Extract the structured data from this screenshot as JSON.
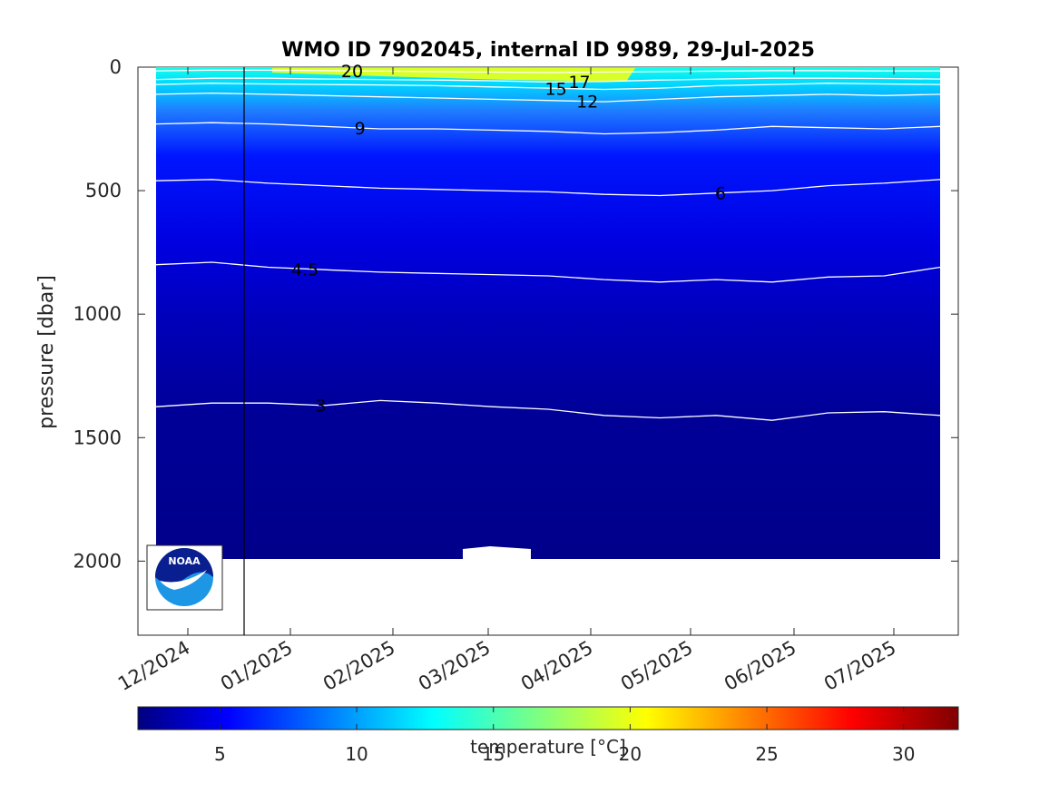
{
  "chart_data": {
    "type": "heatmap",
    "title": "WMO ID 7902045, internal ID 9989, 29-Jul-2025",
    "ylabel": "pressure [dbar]",
    "ylim": [
      2300,
      0
    ],
    "yticks": [
      0,
      500,
      1000,
      1500,
      2000
    ],
    "xticks": [
      "12/2024",
      "01/2025",
      "02/2025",
      "03/2025",
      "04/2025",
      "05/2025",
      "06/2025",
      "07/2025"
    ],
    "data_depth_max": 2000,
    "marker_line_date": "2024-12-20",
    "colorbar": {
      "label": "temperature [°C]",
      "range": [
        2,
        32
      ],
      "ticks": [
        5,
        10,
        15,
        20,
        25,
        30
      ],
      "colormap": "jet"
    },
    "isotherms": [
      {
        "label": "3",
        "depths": [
          1375,
          1360,
          1360,
          1370,
          1350,
          1360,
          1375,
          1385,
          1410,
          1420,
          1410,
          1430,
          1400,
          1395,
          1410
        ]
      },
      {
        "label": "4.5",
        "depths": [
          800,
          790,
          810,
          820,
          830,
          835,
          840,
          845,
          860,
          870,
          860,
          870,
          850,
          845,
          810
        ]
      },
      {
        "label": "6",
        "depths": [
          460,
          455,
          470,
          480,
          490,
          495,
          500,
          505,
          515,
          520,
          510,
          500,
          480,
          470,
          455
        ]
      },
      {
        "label": "9",
        "depths": [
          230,
          225,
          230,
          240,
          250,
          250,
          255,
          260,
          270,
          265,
          255,
          240,
          245,
          250,
          240
        ]
      },
      {
        "label": "12",
        "depths": [
          110,
          105,
          110,
          115,
          120,
          125,
          130,
          135,
          140,
          130,
          120,
          115,
          110,
          115,
          110
        ]
      },
      {
        "label": "15",
        "depths": [
          70,
          65,
          68,
          70,
          72,
          75,
          80,
          85,
          90,
          85,
          75,
          70,
          65,
          68,
          70
        ]
      },
      {
        "label": "17",
        "depths": [
          50,
          45,
          45,
          48,
          50,
          52,
          55,
          60,
          58,
          52,
          48,
          45,
          45,
          46,
          48
        ]
      },
      {
        "label": "20",
        "depths": [
          15,
          12,
          12,
          14,
          16,
          18,
          20,
          22,
          20,
          18,
          16,
          14,
          14,
          15,
          15
        ]
      }
    ],
    "colors": {
      "deep": "#000080",
      "mid": "#0000ff",
      "upper": "#1f7bff",
      "surface": "#14ffea",
      "warm": "#d8ff28",
      "contour": "#ffffff",
      "axis": "#262626"
    }
  },
  "logo": {
    "text": "NOAA"
  }
}
